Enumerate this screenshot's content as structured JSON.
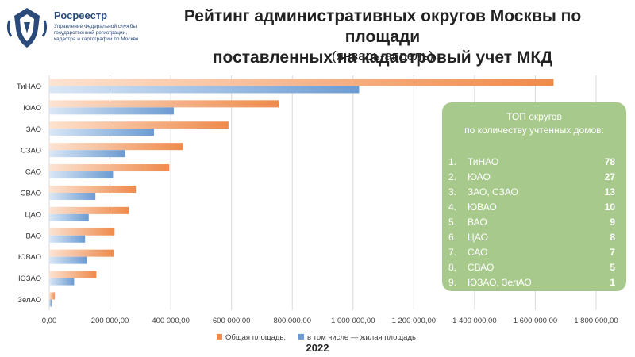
{
  "header": {
    "org_name": "Росреестр",
    "org_sub": "Управление Федеральной службы государственной регистрации, кадастра и картографии по Москве",
    "title_line1": "Рейтинг административных округов Москвы по площади",
    "title_line2": "поставленных на кадастровый учет МКД",
    "subtitle": "(январь-апрель)"
  },
  "colors": {
    "orange": "#ef8a4b",
    "blue": "#6b9bd2",
    "box": "#a8c98c",
    "grid": "#d9d9d9"
  },
  "chart_data": {
    "type": "bar",
    "orientation": "horizontal",
    "categories": [
      "ТиНАО",
      "ЮАО",
      "ЗАО",
      "СЗАО",
      "САО",
      "СВАО",
      "ЦАО",
      "ВАО",
      "ЮВАО",
      "ЮЗАО",
      "ЗелАО"
    ],
    "series": [
      {
        "name": "Общая площадь;",
        "values": [
          1660000,
          755000,
          590000,
          440000,
          395000,
          285000,
          262000,
          215000,
          213000,
          155000,
          18000
        ]
      },
      {
        "name": "в том числе — жилая площадь",
        "values": [
          1020000,
          410000,
          345000,
          250000,
          210000,
          152000,
          130000,
          118000,
          124000,
          82000,
          8000
        ]
      }
    ],
    "xlim": [
      0,
      1800000
    ],
    "xticks": [
      "0,00",
      "200 000,00",
      "400 000,00",
      "600 000,00",
      "800 000,00",
      "1 000 000,00",
      "1 200 000,00",
      "1 400 000,00",
      "1 600 000,00",
      "1 800 000,00"
    ],
    "grid": true,
    "legend": "bottom",
    "xlabel": "2022"
  },
  "top_box": {
    "title_line1": "ТОП округов",
    "title_line2": "по количеству учтенных домов:",
    "items": [
      {
        "num": "1.",
        "name": "ТиНАО",
        "count": "78"
      },
      {
        "num": "2.",
        "name": "ЮАО",
        "count": "27"
      },
      {
        "num": "3.",
        "name": "ЗАО, СЗАО",
        "count": "13"
      },
      {
        "num": "4.",
        "name": "ЮВАО",
        "count": "10"
      },
      {
        "num": "5.",
        "name": "ВАО",
        "count": "9"
      },
      {
        "num": "6.",
        "name": "ЦАО",
        "count": "8"
      },
      {
        "num": "7.",
        "name": "САО",
        "count": "7"
      },
      {
        "num": "8.",
        "name": "СВАО",
        "count": "5"
      },
      {
        "num": "9.",
        "name": "ЮЗАО, ЗелАО",
        "count": "1"
      }
    ]
  }
}
